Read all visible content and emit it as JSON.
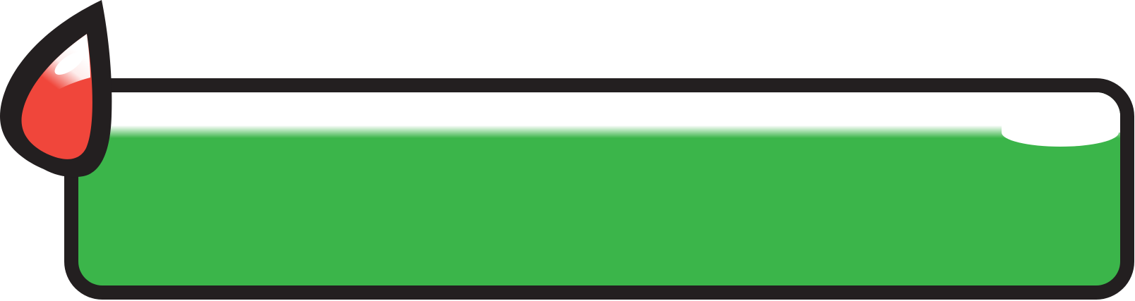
{
  "banner": {
    "fill_color": "#3bb54a",
    "outline_color": "#231f20",
    "highlight_color": "#ffffff"
  },
  "drop": {
    "fill_color": "#f0463b",
    "outline_color": "#231f20",
    "highlight_color": "#ffffff"
  }
}
